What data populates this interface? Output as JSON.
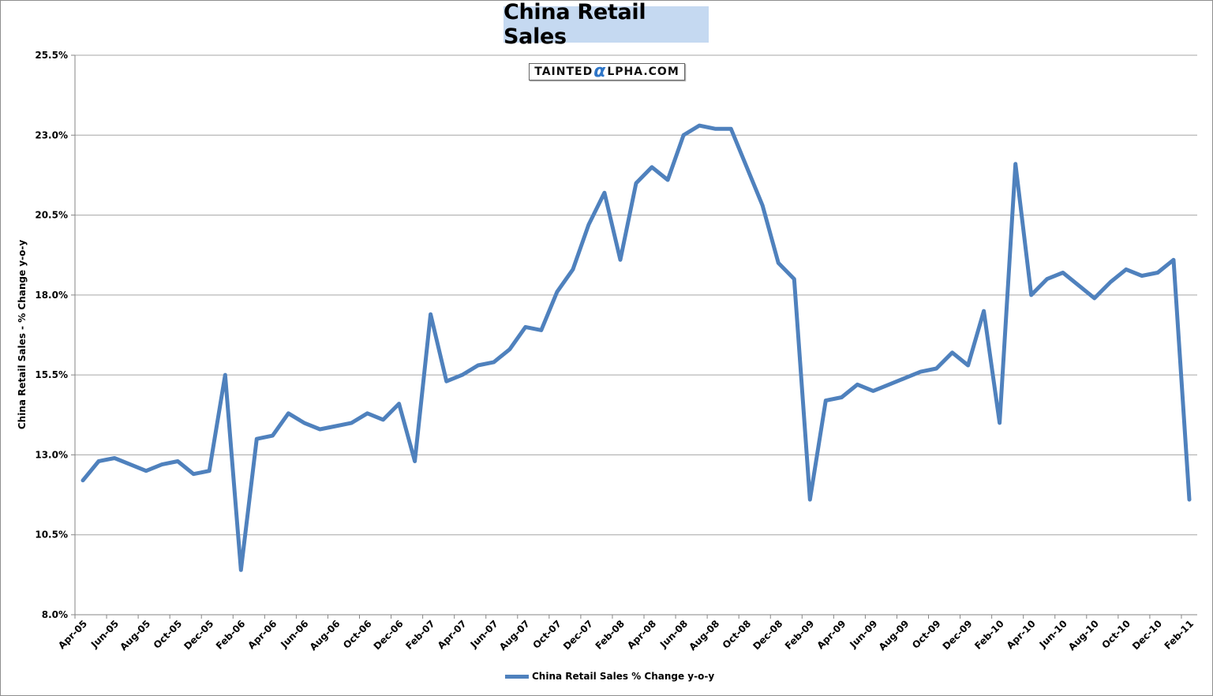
{
  "title": "China Retail Sales",
  "watermark": {
    "prefix": "TAINTED",
    "alpha": "α",
    "suffix": "LPHA.COM"
  },
  "legend_label": "China Retail Sales % Change y-o-y",
  "colors": {
    "line": "#4f81bd",
    "grid": "#a6a6a6",
    "title_bg": "#c5d9f1"
  },
  "chart_data": {
    "type": "line",
    "title": "China Retail Sales",
    "xlabel": "",
    "ylabel": "China Retail Sales - % Change y-o-y",
    "ylim": [
      8.0,
      25.5
    ],
    "yticks": [
      "8.0%",
      "10.5%",
      "13.0%",
      "15.5%",
      "18.0%",
      "20.5%",
      "23.0%",
      "25.5%"
    ],
    "ytick_values": [
      8.0,
      10.5,
      13.0,
      15.5,
      18.0,
      20.5,
      23.0,
      25.5
    ],
    "xtick_labels": [
      "Apr-05",
      "Jun-05",
      "Aug-05",
      "Oct-05",
      "Dec-05",
      "Feb-06",
      "Apr-06",
      "Jun-06",
      "Aug-06",
      "Oct-06",
      "Dec-06",
      "Feb-07",
      "Apr-07",
      "Jun-07",
      "Aug-07",
      "Oct-07",
      "Dec-07",
      "Feb-08",
      "Apr-08",
      "Jun-08",
      "Aug-08",
      "Oct-08",
      "Dec-08",
      "Feb-09",
      "Apr-09",
      "Jun-09",
      "Aug-09",
      "Oct-09",
      "Dec-09",
      "Feb-10",
      "Apr-10",
      "Jun-10",
      "Aug-10",
      "Oct-10",
      "Dec-10",
      "Feb-11"
    ],
    "grid": true,
    "legend_position": "bottom",
    "series": [
      {
        "name": "China Retail Sales % Change y-o-y",
        "x": [
          "Apr-05",
          "May-05",
          "Jun-05",
          "Jul-05",
          "Aug-05",
          "Sep-05",
          "Oct-05",
          "Nov-05",
          "Dec-05",
          "Jan-06",
          "Feb-06",
          "Mar-06",
          "Apr-06",
          "May-06",
          "Jun-06",
          "Jul-06",
          "Aug-06",
          "Sep-06",
          "Oct-06",
          "Nov-06",
          "Dec-06",
          "Jan-07",
          "Feb-07",
          "Mar-07",
          "Apr-07",
          "May-07",
          "Jun-07",
          "Jul-07",
          "Aug-07",
          "Sep-07",
          "Oct-07",
          "Nov-07",
          "Dec-07",
          "Jan-08",
          "Feb-08",
          "Mar-08",
          "Apr-08",
          "May-08",
          "Jun-08",
          "Jul-08",
          "Aug-08",
          "Sep-08",
          "Oct-08",
          "Nov-08",
          "Dec-08",
          "Jan-09",
          "Feb-09",
          "Mar-09",
          "Apr-09",
          "May-09",
          "Jun-09",
          "Jul-09",
          "Aug-09",
          "Sep-09",
          "Oct-09",
          "Nov-09",
          "Dec-09",
          "Jan-10",
          "Feb-10",
          "Mar-10",
          "Apr-10",
          "May-10",
          "Jun-10",
          "Jul-10",
          "Aug-10",
          "Sep-10",
          "Oct-10",
          "Nov-10",
          "Dec-10",
          "Jan-11",
          "Feb-11"
        ],
        "values": [
          12.2,
          12.8,
          12.9,
          12.7,
          12.5,
          12.7,
          12.8,
          12.4,
          12.5,
          15.5,
          9.4,
          13.5,
          13.6,
          14.3,
          14.0,
          13.8,
          13.9,
          14.0,
          14.3,
          14.1,
          14.6,
          12.8,
          17.4,
          15.3,
          15.5,
          15.8,
          15.9,
          16.3,
          17.0,
          16.9,
          18.1,
          18.8,
          20.2,
          21.2,
          19.1,
          21.5,
          22.0,
          21.6,
          23.0,
          23.3,
          23.2,
          23.2,
          22.0,
          20.8,
          19.0,
          18.5,
          11.6,
          14.7,
          14.8,
          15.2,
          15.0,
          15.2,
          15.4,
          15.6,
          15.7,
          16.2,
          15.8,
          17.5,
          14.0,
          22.1,
          18.0,
          18.5,
          18.7,
          18.3,
          17.9,
          18.4,
          18.8,
          18.6,
          18.7,
          19.1,
          11.6
        ]
      }
    ]
  }
}
